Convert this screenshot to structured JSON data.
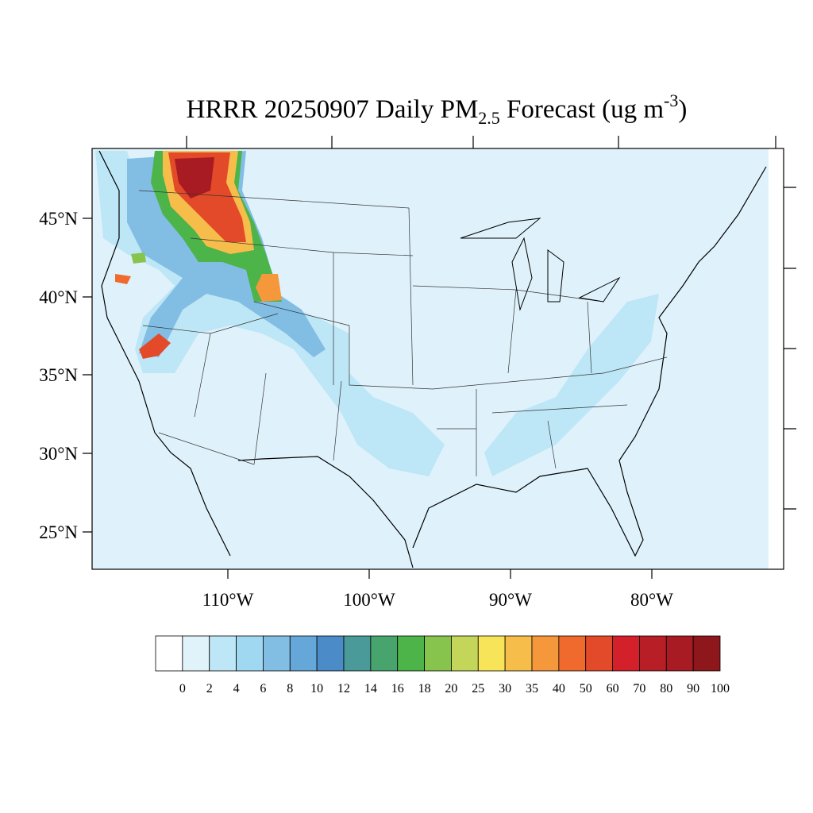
{
  "title": {
    "main": "HRRR 20250907 Daily PM",
    "subscript": "2.5",
    "middle": " Forecast (ug m",
    "superscript": "-3",
    "end": ")"
  },
  "lat_labels": [
    "45°N",
    "40°N",
    "35°N",
    "30°N",
    "25°N"
  ],
  "lon_labels": [
    "110°W",
    "100°W",
    "90°W",
    "80°W"
  ],
  "colorbar": {
    "levels": [
      0,
      2,
      4,
      6,
      8,
      10,
      12,
      14,
      16,
      18,
      20,
      25,
      30,
      35,
      40,
      50,
      60,
      70,
      80,
      90,
      100
    ],
    "colors": [
      "#ffffff",
      "#e0f3fb",
      "#bde6f6",
      "#a0d8f2",
      "#82bde4",
      "#66a7da",
      "#4a8bc8",
      "#4a9a9a",
      "#48a46d",
      "#4cb448",
      "#86c44e",
      "#c4d65a",
      "#f8e458",
      "#f7bd4a",
      "#f5983c",
      "#f06a2e",
      "#e34a2a",
      "#d3202a",
      "#b71e25",
      "#a81b22",
      "#8d171b"
    ]
  }
}
